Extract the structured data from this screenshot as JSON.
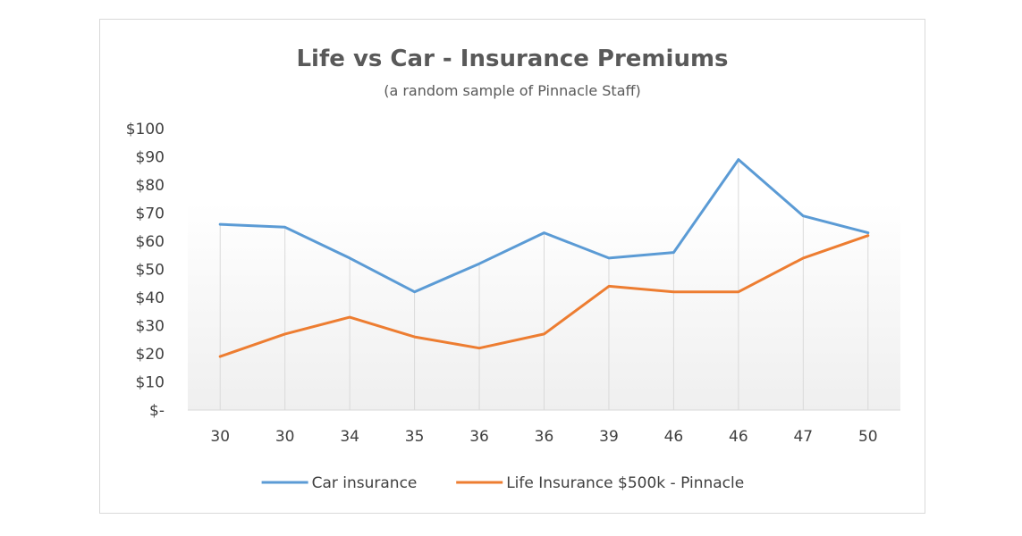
{
  "chart_data": {
    "type": "line",
    "title": "Life vs Car - Insurance Premiums",
    "subtitle": "(a random sample of Pinnacle Staff)",
    "categories": [
      "30",
      "30",
      "34",
      "35",
      "36",
      "36",
      "39",
      "46",
      "46",
      "47",
      "50"
    ],
    "y_tick_labels": [
      "$-",
      "$10",
      "$20",
      "$30",
      "$40",
      "$50",
      "$60",
      "$70",
      "$80",
      "$90",
      "$100"
    ],
    "ylim": [
      0,
      100
    ],
    "y_step": 10,
    "grid": "vertical",
    "legend_position": "bottom",
    "series": [
      {
        "name": "Car insurance",
        "color": "#5b9bd5",
        "values": [
          66,
          65,
          54,
          42,
          52,
          63,
          54,
          56,
          89,
          69,
          63
        ]
      },
      {
        "name": "Life Insurance $500k - Pinnacle",
        "color": "#ed7d31",
        "values": [
          19,
          27,
          33,
          26,
          22,
          27,
          44,
          42,
          42,
          54,
          62
        ]
      }
    ]
  }
}
